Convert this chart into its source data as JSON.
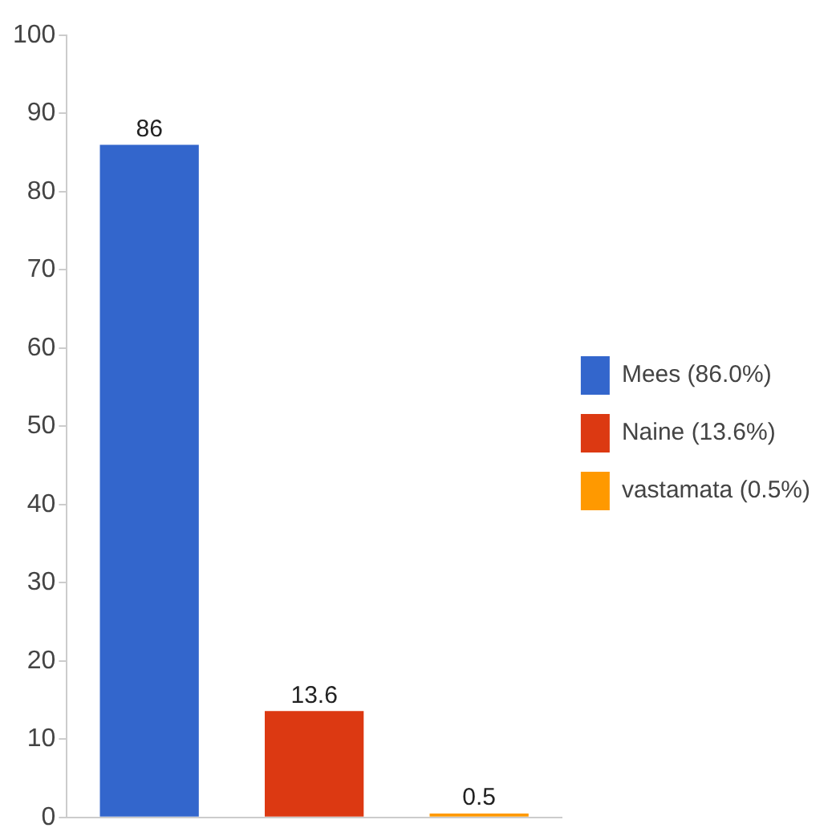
{
  "chart_data": {
    "type": "bar",
    "categories": [
      null,
      null,
      null
    ],
    "series": [
      {
        "name": "Mees (86.0%)",
        "color": "#3366cc",
        "values": [
          86,
          null,
          null
        ]
      },
      {
        "name": "Naine (13.6%)",
        "color": "#dc3912",
        "values": [
          null,
          13.6,
          null
        ]
      },
      {
        "name": "vastamata (0.5%)",
        "color": "#ff9900",
        "values": [
          null,
          null,
          0.5
        ]
      }
    ],
    "ylim": [
      0,
      100
    ],
    "yticks": [
      0,
      10,
      20,
      30,
      40,
      50,
      60,
      70,
      80,
      90,
      100
    ],
    "tick_labels": "y",
    "grid": false,
    "legend": "right",
    "data_labels": true
  }
}
